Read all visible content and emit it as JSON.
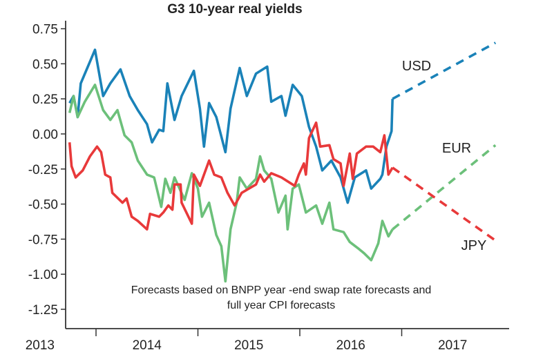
{
  "chart_data": {
    "type": "line",
    "title": "G3 10-year real yields",
    "xlabel": "",
    "ylabel": "",
    "ylim": [
      -1.25,
      0.75
    ],
    "xlim": [
      2013.7,
      2018.0
    ],
    "yticks": [
      "0.75",
      "0.50",
      "0.25",
      "0.00",
      "-0.25",
      "-0.50",
      "-0.75",
      "-1.00",
      "-1.25"
    ],
    "ytick_values": [
      0.75,
      0.5,
      0.25,
      0,
      -0.25,
      -0.5,
      -0.75,
      -1,
      -1.25
    ],
    "xtick_positions": [
      2014,
      2015,
      2016,
      2017
    ],
    "xlabels": [
      {
        "label": "2013",
        "at": 2013.45
      },
      {
        "label": "2014",
        "at": 2014.5
      },
      {
        "label": "2015",
        "at": 2015.5
      },
      {
        "label": "2016",
        "at": 2016.5
      },
      {
        "label": "2017",
        "at": 2017.5
      }
    ],
    "annotation": [
      "Forecasts based on BNPP year -end swap rate forecasts and",
      "full year CPI forecasts"
    ],
    "series": [
      {
        "name": "USD",
        "color": "#1a82b8",
        "points": [
          [
            13.74,
            0.22
          ],
          [
            13.78,
            0.27
          ],
          [
            13.82,
            0.12
          ],
          [
            13.85,
            0.36
          ],
          [
            13.92,
            0.48
          ],
          [
            13.99,
            0.6
          ],
          [
            14.07,
            0.27
          ],
          [
            14.14,
            0.36
          ],
          [
            14.24,
            0.46
          ],
          [
            14.33,
            0.27
          ],
          [
            14.41,
            0.17
          ],
          [
            14.5,
            0.07
          ],
          [
            14.55,
            -0.06
          ],
          [
            14.62,
            0.03
          ],
          [
            14.66,
            0.02
          ],
          [
            14.7,
            0.36
          ],
          [
            14.77,
            0.1
          ],
          [
            14.84,
            0.27
          ],
          [
            14.96,
            0.45
          ],
          [
            15.02,
            0.18
          ],
          [
            15.06,
            -0.09
          ],
          [
            15.11,
            0.22
          ],
          [
            15.18,
            0.12
          ],
          [
            15.27,
            -0.13
          ],
          [
            15.32,
            0.18
          ],
          [
            15.41,
            0.47
          ],
          [
            15.48,
            0.27
          ],
          [
            15.57,
            0.43
          ],
          [
            15.68,
            0.48
          ],
          [
            15.72,
            0.23
          ],
          [
            15.82,
            0.27
          ],
          [
            15.86,
            0.13
          ],
          [
            15.93,
            0.35
          ],
          [
            16.02,
            0.27
          ],
          [
            16.09,
            0.05
          ],
          [
            16.16,
            -0.09
          ],
          [
            16.22,
            -0.26
          ],
          [
            16.31,
            -0.19
          ],
          [
            16.4,
            -0.31
          ],
          [
            16.47,
            -0.49
          ],
          [
            16.54,
            -0.31
          ],
          [
            16.65,
            -0.26
          ],
          [
            16.7,
            -0.39
          ],
          [
            16.79,
            -0.32
          ],
          [
            16.81,
            -0.29
          ],
          [
            16.85,
            -0.09
          ],
          [
            16.9,
            0.02
          ],
          [
            16.91,
            0.25
          ]
        ],
        "forecast": [
          [
            16.91,
            0.25
          ],
          [
            17.92,
            0.65
          ]
        ]
      },
      {
        "name": "EUR",
        "color": "#6cc07a",
        "points": [
          [
            13.74,
            0.15
          ],
          [
            13.78,
            0.27
          ],
          [
            13.82,
            0.12
          ],
          [
            13.89,
            0.23
          ],
          [
            13.99,
            0.35
          ],
          [
            14.07,
            0.17
          ],
          [
            14.14,
            0.1
          ],
          [
            14.21,
            0.17
          ],
          [
            14.28,
            -0.01
          ],
          [
            14.35,
            -0.06
          ],
          [
            14.41,
            -0.19
          ],
          [
            14.5,
            -0.29
          ],
          [
            14.57,
            -0.31
          ],
          [
            14.64,
            -0.52
          ],
          [
            14.68,
            -0.32
          ],
          [
            14.73,
            -0.42
          ],
          [
            14.77,
            -0.31
          ],
          [
            14.87,
            -0.47
          ],
          [
            14.94,
            -0.28
          ],
          [
            15.0,
            -0.39
          ],
          [
            15.04,
            -0.59
          ],
          [
            15.11,
            -0.49
          ],
          [
            15.18,
            -0.72
          ],
          [
            15.23,
            -0.8
          ],
          [
            15.27,
            -1.05
          ],
          [
            15.32,
            -0.68
          ],
          [
            15.38,
            -0.49
          ],
          [
            15.41,
            -0.31
          ],
          [
            15.48,
            -0.39
          ],
          [
            15.57,
            -0.32
          ],
          [
            15.61,
            -0.16
          ],
          [
            15.65,
            -0.26
          ],
          [
            15.72,
            -0.32
          ],
          [
            15.79,
            -0.56
          ],
          [
            15.86,
            -0.44
          ],
          [
            15.88,
            -0.68
          ],
          [
            15.93,
            -0.39
          ],
          [
            15.99,
            -0.36
          ],
          [
            16.06,
            -0.56
          ],
          [
            16.16,
            -0.51
          ],
          [
            16.22,
            -0.64
          ],
          [
            16.29,
            -0.49
          ],
          [
            16.33,
            -0.68
          ],
          [
            16.43,
            -0.7
          ],
          [
            16.49,
            -0.77
          ],
          [
            16.58,
            -0.82
          ],
          [
            16.63,
            -0.85
          ],
          [
            16.7,
            -0.9
          ],
          [
            16.77,
            -0.78
          ],
          [
            16.81,
            -0.62
          ],
          [
            16.87,
            -0.73
          ],
          [
            16.91,
            -0.68
          ]
        ],
        "forecast": [
          [
            16.91,
            -0.68
          ],
          [
            17.92,
            -0.08
          ]
        ]
      },
      {
        "name": "JPY",
        "color": "#e8393a",
        "points": [
          [
            13.74,
            -0.06
          ],
          [
            13.76,
            -0.23
          ],
          [
            13.8,
            -0.31
          ],
          [
            13.87,
            -0.26
          ],
          [
            13.94,
            -0.16
          ],
          [
            14.01,
            -0.09
          ],
          [
            14.05,
            -0.13
          ],
          [
            14.09,
            -0.29
          ],
          [
            14.14,
            -0.31
          ],
          [
            14.16,
            -0.42
          ],
          [
            14.26,
            -0.49
          ],
          [
            14.3,
            -0.46
          ],
          [
            14.35,
            -0.59
          ],
          [
            14.41,
            -0.62
          ],
          [
            14.5,
            -0.68
          ],
          [
            14.53,
            -0.57
          ],
          [
            14.62,
            -0.59
          ],
          [
            14.66,
            -0.56
          ],
          [
            14.71,
            -0.51
          ],
          [
            14.75,
            -0.54
          ],
          [
            14.77,
            -0.36
          ],
          [
            14.83,
            -0.36
          ],
          [
            14.84,
            -0.49
          ],
          [
            14.94,
            -0.64
          ],
          [
            14.96,
            -0.29
          ],
          [
            15.02,
            -0.37
          ],
          [
            15.11,
            -0.19
          ],
          [
            15.16,
            -0.29
          ],
          [
            15.23,
            -0.31
          ],
          [
            15.29,
            -0.42
          ],
          [
            15.36,
            -0.51
          ],
          [
            15.43,
            -0.42
          ],
          [
            15.5,
            -0.39
          ],
          [
            15.57,
            -0.36
          ],
          [
            15.61,
            -0.29
          ],
          [
            15.65,
            -0.34
          ],
          [
            15.72,
            -0.28
          ],
          [
            15.82,
            -0.31
          ],
          [
            15.95,
            -0.37
          ],
          [
            15.99,
            -0.29
          ],
          [
            16.04,
            -0.21
          ],
          [
            16.06,
            -0.29
          ],
          [
            16.09,
            -0.03
          ],
          [
            16.16,
            0.08
          ],
          [
            16.2,
            -0.09
          ],
          [
            16.29,
            -0.08
          ],
          [
            16.33,
            -0.18
          ],
          [
            16.4,
            -0.21
          ],
          [
            16.43,
            -0.37
          ],
          [
            16.49,
            -0.14
          ],
          [
            16.52,
            -0.32
          ],
          [
            16.56,
            -0.14
          ],
          [
            16.65,
            -0.09
          ],
          [
            16.72,
            -0.09
          ],
          [
            16.79,
            -0.13
          ],
          [
            16.83,
            -0.01
          ],
          [
            16.87,
            -0.29
          ],
          [
            16.91,
            -0.24
          ]
        ],
        "forecast": [
          [
            16.91,
            -0.24
          ],
          [
            17.92,
            -0.76
          ]
        ]
      }
    ]
  }
}
